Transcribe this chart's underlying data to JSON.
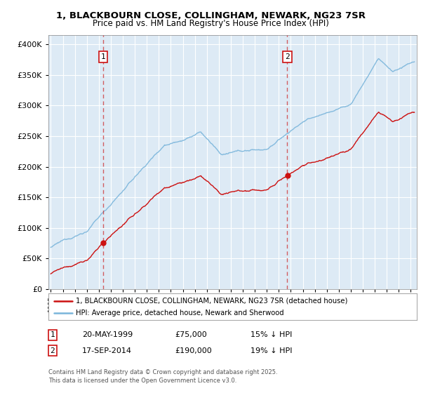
{
  "title1": "1, BLACKBOURN CLOSE, COLLINGHAM, NEWARK, NG23 7SR",
  "title2": "Price paid vs. HM Land Registry's House Price Index (HPI)",
  "ytick_values": [
    0,
    50000,
    100000,
    150000,
    200000,
    250000,
    300000,
    350000,
    400000
  ],
  "ylim": [
    0,
    415000
  ],
  "xlim_start": 1994.8,
  "xlim_end": 2025.5,
  "sale1_date": 1999.38,
  "sale1_price": 75000,
  "sale1_label": "1",
  "sale2_date": 2014.71,
  "sale2_price": 190000,
  "sale2_label": "2",
  "hpi_color": "#7ab5db",
  "price_color": "#cc1111",
  "dashed_color": "#cc2222",
  "background_color": "#ddeaf5",
  "grid_color": "#ffffff",
  "legend_line1": "1, BLACKBOURN CLOSE, COLLINGHAM, NEWARK, NG23 7SR (detached house)",
  "legend_line2": "HPI: Average price, detached house, Newark and Sherwood",
  "annotation1_date": "20-MAY-1999",
  "annotation1_price": "£75,000",
  "annotation1_hpi": "15% ↓ HPI",
  "annotation2_date": "17-SEP-2014",
  "annotation2_price": "£190,000",
  "annotation2_hpi": "19% ↓ HPI",
  "footer": "Contains HM Land Registry data © Crown copyright and database right 2025.\nThis data is licensed under the Open Government Licence v3.0."
}
